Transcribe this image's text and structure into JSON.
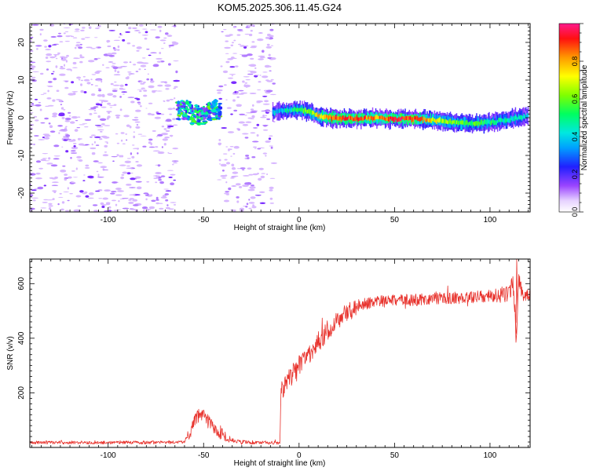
{
  "title": "KOM5.2025.306.11.45.G24",
  "chart_data": [
    {
      "type": "heatmap",
      "name": "spectrogram",
      "xlabel": "Height of straight line (km)",
      "ylabel": "Frequency (Hz)",
      "xlim": [
        -141,
        121
      ],
      "ylim": [
        -25,
        25
      ],
      "xticks": [
        -100,
        -50,
        0,
        50,
        100
      ],
      "yticks": [
        -20,
        -10,
        0,
        10,
        20
      ],
      "colorbar": {
        "label": "Normalized spectral amplitude",
        "range": [
          0,
          1
        ],
        "ticks": [
          0.0,
          0.2,
          0.4,
          0.6,
          0.8
        ],
        "tick_labels": [
          "0.0",
          "0.2",
          "0.4",
          "0.6",
          "0.8"
        ],
        "colors": [
          "#ffffff",
          "#d9b8ff",
          "#9a44ff",
          "#1a1aff",
          "#00ccff",
          "#00ff80",
          "#66ff00",
          "#ffff00",
          "#ff9900",
          "#ff0000",
          "#ff1a8c"
        ]
      },
      "noise_regions_km": [
        [
          -141,
          -64
        ],
        [
          -42,
          -13
        ]
      ],
      "blank_region_km": [
        -64,
        -42
      ],
      "burst_region_km": [
        -64,
        -41
      ],
      "signal_track": {
        "x": [
          -14,
          -5,
          0,
          5,
          10,
          20,
          30,
          40,
          50,
          60,
          70,
          80,
          90,
          100,
          110,
          120
        ],
        "freq": [
          1.5,
          2.0,
          2.2,
          1.6,
          0.4,
          -0.2,
          -0.2,
          -0.1,
          -0.3,
          -0.3,
          -0.6,
          -1.2,
          -1.6,
          -1.2,
          -0.4,
          0.5
        ],
        "amplitude": [
          0.35,
          0.45,
          0.55,
          0.6,
          0.75,
          0.88,
          0.9,
          0.82,
          0.95,
          0.9,
          0.7,
          0.6,
          0.55,
          0.5,
          0.45,
          0.35
        ]
      }
    },
    {
      "type": "line",
      "name": "snr",
      "xlabel": "Height of straight line (km)",
      "ylabel": "SNR (v/v)",
      "xlim": [
        -141,
        121
      ],
      "ylim": [
        0,
        690
      ],
      "xticks": [
        -100,
        -50,
        0,
        50,
        100
      ],
      "yticks": [
        200,
        400,
        600
      ],
      "color": "#e8322c",
      "trend": {
        "x": [
          -141,
          -80,
          -60,
          -57,
          -54,
          -50,
          -46,
          -42,
          -38,
          -30,
          -20,
          -10,
          -9.5,
          -8,
          -5,
          0,
          5,
          10,
          15,
          20,
          25,
          30,
          35,
          40,
          50,
          60,
          70,
          80,
          90,
          100,
          105,
          110,
          112,
          114,
          115,
          117,
          121
        ],
        "y": [
          18,
          18,
          20,
          55,
          110,
          120,
          80,
          60,
          28,
          20,
          18,
          16,
          200,
          220,
          250,
          295,
          340,
          385,
          430,
          465,
          495,
          515,
          525,
          532,
          538,
          540,
          545,
          548,
          550,
          555,
          560,
          560,
          600,
          420,
          620,
          555,
          560
        ]
      },
      "noise_amplitude": {
        "x": [
          -141,
          -60,
          -57,
          -40,
          -38,
          -10,
          -9,
          0,
          20,
          40,
          100,
          110,
          121
        ],
        "y": [
          6,
          6,
          28,
          24,
          8,
          6,
          40,
          45,
          35,
          22,
          22,
          35,
          20
        ]
      },
      "peaks": [
        {
          "x": 114,
          "y": 690
        },
        {
          "x": 113.6,
          "y": 385
        }
      ]
    }
  ]
}
